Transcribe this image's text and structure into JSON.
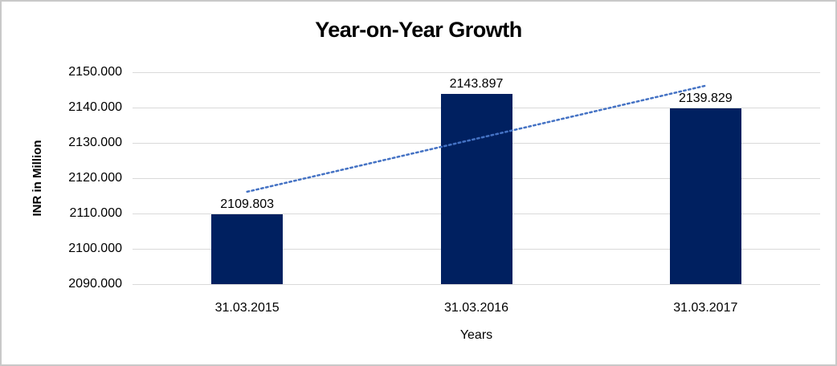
{
  "chart_data": {
    "type": "bar",
    "title": "Year-on-Year Growth",
    "xlabel": "Years",
    "ylabel": "INR in Million",
    "categories": [
      "31.03.2015",
      "31.03.2016",
      "31.03.2017"
    ],
    "values": [
      2109.803,
      2143.897,
      2139.829
    ],
    "data_labels": [
      "2109.803",
      "2143.897",
      "2139.829"
    ],
    "ylim": [
      2090,
      2150
    ],
    "ytick_step": 10,
    "ytick_labels": [
      "2150.000",
      "2140.000",
      "2130.000",
      "2120.000",
      "2110.000",
      "2100.000",
      "2090.000"
    ],
    "grid": true,
    "legend": false,
    "trendline": {
      "type": "linear",
      "style": "dotted",
      "start_value": 2116.16,
      "end_value": 2146.19
    },
    "colors": {
      "bar": "#002060",
      "trendline": "#4472C4",
      "gridline": "#D9D9D9",
      "text": "#000000",
      "frame_border": "#C9C9C9",
      "background": "#FFFFFF"
    }
  }
}
